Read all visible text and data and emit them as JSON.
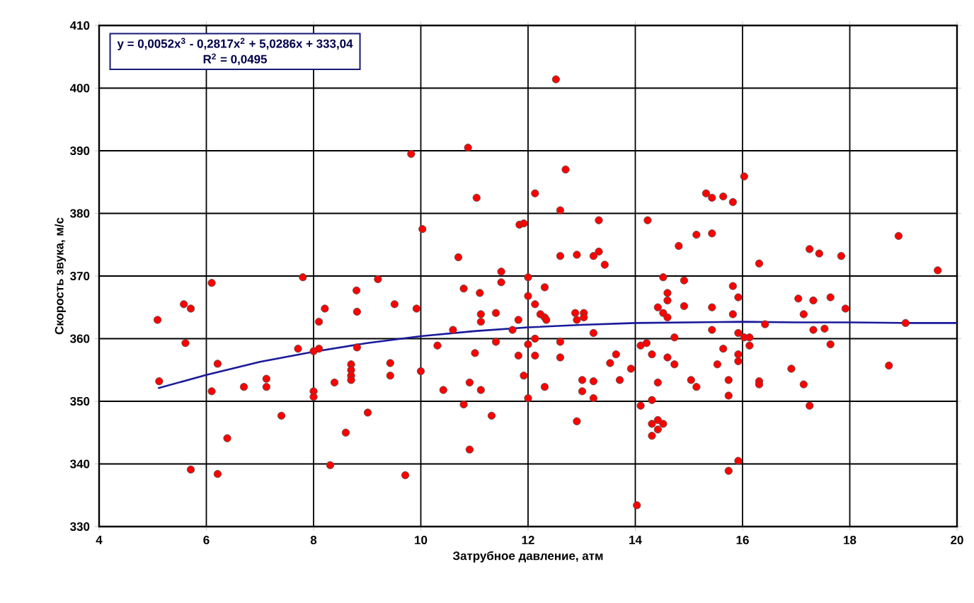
{
  "chart_data": {
    "type": "scatter",
    "xlabel": "Затрубное давление, атм",
    "ylabel": "Скорость звука, м/с",
    "xlim": [
      4,
      20
    ],
    "xticks": [
      4,
      6,
      8,
      10,
      12,
      14,
      16,
      18,
      20
    ],
    "ylim": [
      330,
      410
    ],
    "yticks": [
      330,
      340,
      350,
      360,
      370,
      380,
      390,
      400,
      410
    ],
    "grid": true,
    "annotations": [
      "y = 0,0052x$^{3}$ - 0,2817x$^{2}$ + 5,0286x + 333,04",
      "R$^{2}$ = 0,0495"
    ],
    "series": [
      {
        "type": "scatter",
        "color": "#ff0000",
        "marker": "circle",
        "x": [
          9.82,
          10.88,
          11.04,
          10.03,
          10.7,
          11.5,
          11.5,
          12.0,
          6.1,
          7.8,
          8.8,
          9.2,
          10.8,
          11.1,
          12.52,
          12.7,
          12.13,
          12.6,
          11.84,
          11.92,
          13.32,
          14.23,
          15.32,
          15.43,
          15.64,
          15.82,
          16.03,
          14.81,
          15.14,
          15.43,
          12.6,
          12.91,
          13.22,
          13.32,
          13.43,
          12.31,
          16.31,
          17.25,
          17.43,
          17.84,
          18.91,
          19.64,
          14.52,
          14.91,
          15.82,
          5.09,
          5.58,
          5.71,
          5.61,
          5.12,
          6.21,
          6.1,
          6.39,
          5.71,
          6.21,
          6.7,
          7.12,
          7.12,
          7.4,
          7.71,
          8.0,
          8.1,
          8.0,
          8.0,
          8.1,
          8.21,
          8.31,
          8.39,
          8.6,
          8.7,
          8.7,
          8.7,
          8.7,
          8.81,
          8.81,
          9.01,
          9.43,
          9.43,
          9.51,
          9.71,
          9.92,
          10.0,
          10.31,
          10.42,
          10.6,
          10.8,
          10.91,
          10.91,
          11.01,
          11.12,
          11.12,
          11.12,
          11.32,
          11.4,
          11.4,
          11.71,
          11.82,
          11.82,
          11.92,
          12.0,
          12.0,
          12.0,
          12.13,
          12.13,
          12.13,
          12.23,
          12.31,
          12.34,
          12.31,
          12.6,
          12.6,
          12.88,
          13.04,
          12.91,
          13.04,
          12.91,
          13.01,
          13.01,
          13.22,
          13.22,
          13.22,
          13.53,
          13.64,
          13.71,
          13.92,
          14.03,
          14.1,
          14.21,
          14.1,
          14.31,
          14.31,
          14.42,
          14.31,
          14.42,
          14.52,
          14.42,
          14.31,
          14.42,
          14.52,
          14.6,
          14.6,
          14.6,
          14.6,
          14.73,
          14.73,
          14.91,
          15.04,
          15.14,
          15.43,
          15.43,
          15.53,
          15.64,
          15.74,
          15.74,
          15.74,
          15.92,
          15.82,
          15.92,
          15.92,
          16.03,
          16.13,
          16.13,
          15.92,
          15.92,
          16.31,
          16.31,
          16.42,
          16.91,
          17.04,
          17.14,
          17.14,
          17.25,
          17.32,
          17.32,
          17.53,
          17.64,
          17.64,
          17.92,
          18.73,
          19.04
        ],
        "values": [
          389.5,
          390.5,
          382.5,
          377.5,
          373,
          370.7,
          369,
          369.8,
          368.9,
          369.8,
          367.7,
          369.5,
          368,
          367.3,
          401.4,
          387,
          383.2,
          380.5,
          378.2,
          378.4,
          378.9,
          378.9,
          383.2,
          382.5,
          382.7,
          381.8,
          385.9,
          374.8,
          376.6,
          376.8,
          373.2,
          373.4,
          373.2,
          373.9,
          371.8,
          368.2,
          372,
          374.3,
          373.6,
          373.2,
          376.4,
          370.9,
          369.8,
          369.3,
          368.4,
          363,
          365.5,
          364.8,
          359.3,
          353.2,
          356,
          351.6,
          344.1,
          339.1,
          338.4,
          352.3,
          353.6,
          352.3,
          347.7,
          358.4,
          358,
          358.4,
          351.6,
          350.7,
          362.7,
          364.8,
          339.8,
          353,
          345,
          355.9,
          355,
          354.1,
          353.4,
          358.6,
          364.3,
          348.2,
          356.1,
          354.1,
          365.5,
          338.2,
          364.8,
          354.8,
          358.9,
          351.8,
          361.4,
          349.5,
          353,
          342.3,
          357.7,
          363.9,
          362.7,
          351.8,
          347.7,
          364.1,
          359.5,
          361.4,
          363,
          357.3,
          354.1,
          350.5,
          359.1,
          366.8,
          365.5,
          360,
          357.3,
          363.9,
          363.4,
          363,
          352.3,
          359.5,
          357,
          364.1,
          364.1,
          363,
          363.4,
          346.8,
          353.4,
          351.6,
          360.9,
          353.2,
          350.5,
          356.1,
          357.5,
          353.4,
          355.2,
          333.4,
          358.9,
          359.3,
          349.3,
          357.5,
          350.2,
          353,
          346.4,
          347,
          346.4,
          345.5,
          344.5,
          365,
          364.1,
          366.1,
          367.3,
          363.4,
          357,
          355.9,
          360.2,
          365.2,
          353.4,
          352.3,
          365,
          361.4,
          355.9,
          358.4,
          353.4,
          350.9,
          338.9,
          340.5,
          363.9,
          366.6,
          360.9,
          360.2,
          360.2,
          358.9,
          357.5,
          356.4,
          353.2,
          352.7,
          362.3,
          355.2,
          366.4,
          363.9,
          352.7,
          349.3,
          366.1,
          361.4,
          361.6,
          366.6,
          359.1,
          364.8,
          355.7,
          362.5
        ]
      },
      {
        "type": "line",
        "color": "#1a1a9a",
        "line_style": "solid",
        "marker": "none",
        "x": [
          5.1,
          6,
          7,
          8,
          9,
          10,
          11,
          12,
          13,
          14,
          15,
          16,
          17,
          18,
          19,
          20
        ],
        "values": [
          352.1,
          354.2,
          356.3,
          357.9,
          359.3,
          360.4,
          361.2,
          361.8,
          362.2,
          362.5,
          362.6,
          362.7,
          362.6,
          362.6,
          362.5,
          362.5
        ]
      }
    ]
  }
}
